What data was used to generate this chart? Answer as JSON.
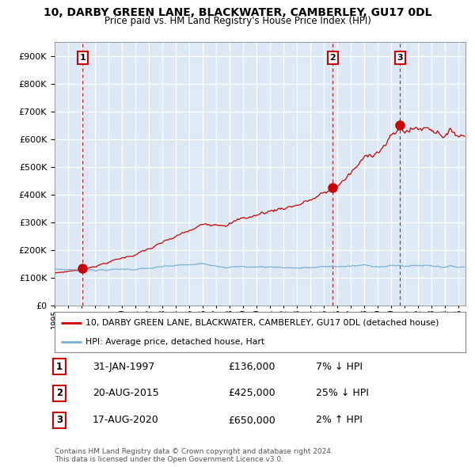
{
  "title": "10, DARBY GREEN LANE, BLACKWATER, CAMBERLEY, GU17 0DL",
  "subtitle": "Price paid vs. HM Land Registry's House Price Index (HPI)",
  "xlim_start": 1995.0,
  "xlim_end": 2025.5,
  "ylim": [
    0,
    950000
  ],
  "yticks": [
    0,
    100000,
    200000,
    300000,
    400000,
    500000,
    600000,
    700000,
    800000,
    900000
  ],
  "plot_bg_color": "#dce9f5",
  "sale_color": "#cc0000",
  "hpi_color": "#7ab0d4",
  "dashed_line_color": "#cc0000",
  "transactions": [
    {
      "num": 1,
      "date_dec": 1997.08,
      "price": 136000
    },
    {
      "num": 2,
      "date_dec": 2015.64,
      "price": 425000
    },
    {
      "num": 3,
      "date_dec": 2020.64,
      "price": 650000
    }
  ],
  "legend_label_sale": "10, DARBY GREEN LANE, BLACKWATER, CAMBERLEY, GU17 0DL (detached house)",
  "legend_label_hpi": "HPI: Average price, detached house, Hart",
  "footer": "Contains HM Land Registry data © Crown copyright and database right 2024.\nThis data is licensed under the Open Government Licence v3.0.",
  "table_rows": [
    {
      "num": 1,
      "date": "31-JAN-1997",
      "price": "£136,000",
      "pct": "7% ↓ HPI"
    },
    {
      "num": 2,
      "date": "20-AUG-2015",
      "price": "£425,000",
      "pct": "25% ↓ HPI"
    },
    {
      "num": 3,
      "date": "17-AUG-2020",
      "price": "£650,000",
      "pct": "2% ↑ HPI"
    }
  ]
}
